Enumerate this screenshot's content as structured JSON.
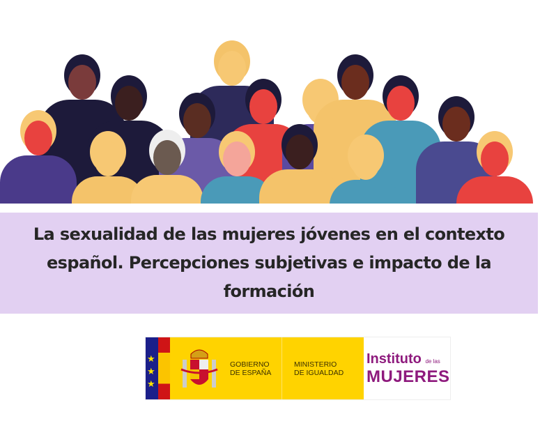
{
  "cover": {
    "title": "La sexualidad de las mujeres jóvenes en el contexto español. Percepciones subjetivas e impacto de la formación",
    "band_color": "#e2d0f2"
  },
  "logo": {
    "gobierno_line1": "GOBIERNO",
    "gobierno_line2": "DE ESPAÑA",
    "ministerio_line1": "MINISTERIO",
    "ministerio_line2": "DE IGUALDAD",
    "instituto_word": "Instituto",
    "instituto_small": "de las",
    "mujeres_word": "MUJERES",
    "brand_color": "#8e1a7d",
    "gov_yellow": "#ffd300"
  }
}
